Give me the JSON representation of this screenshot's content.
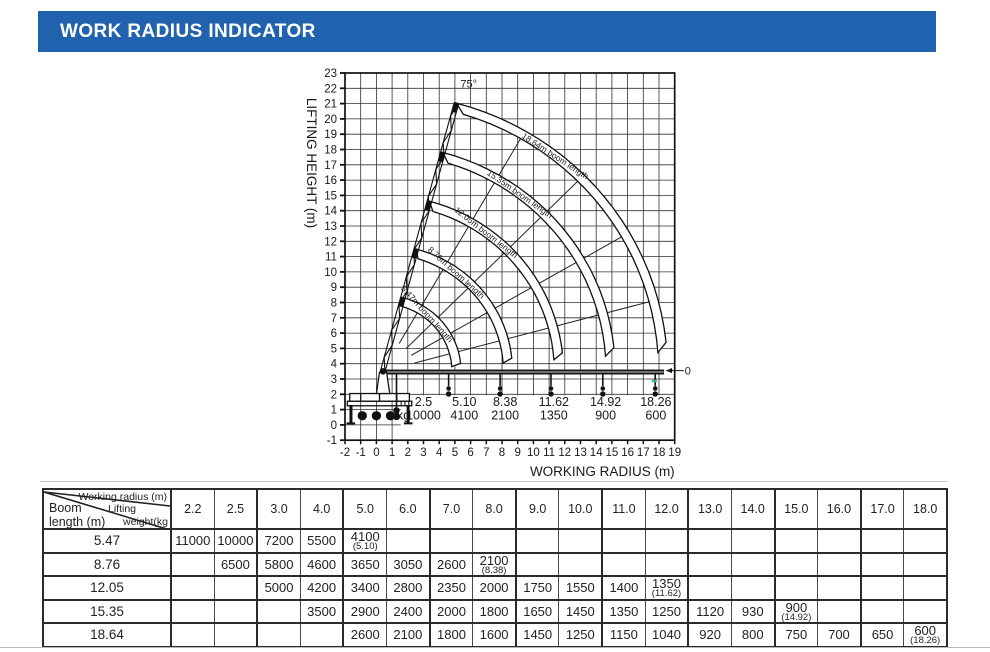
{
  "header": {
    "title": "WORK RADIUS INDICATOR",
    "bar_color": "#2062ae"
  },
  "chart_data": {
    "type": "line",
    "title": "",
    "xlabel": "WORKING RADIUS (m)",
    "ylabel": "LIFTING HEIGHT (m)",
    "xlim": [
      -2,
      19
    ],
    "ylim": [
      -1,
      23
    ],
    "x_tick_step": 1,
    "y_tick_step": 1,
    "grid": true,
    "legend_position": "none",
    "pivot": {
      "x": 0.4,
      "y": 3.5
    },
    "max_angle_label": "75°",
    "min_angle_label": "0°",
    "curves": [
      {
        "label": "5.47m boom length",
        "boom_length_m": 5.47,
        "max_radius_m": 5.1
      },
      {
        "label": "8.76m boom length",
        "boom_length_m": 8.76,
        "max_radius_m": 8.38
      },
      {
        "label": "12.05m boom length",
        "boom_length_m": 12.05,
        "max_radius_m": 11.62
      },
      {
        "label": "15.35m boom length",
        "boom_length_m": 15.35,
        "max_radius_m": 14.92
      },
      {
        "label": "18.64m boom length",
        "boom_length_m": 18.64,
        "max_radius_m": 18.26
      }
    ],
    "load_scale": {
      "m_label": "m",
      "kg_label": "kg",
      "radii_m": [
        "2.5",
        "5.10",
        "8.38",
        "11.62",
        "14.92",
        "18.26"
      ],
      "capacities_kg": [
        "10000",
        "4100",
        "2100",
        "1350",
        "900",
        "600"
      ]
    }
  },
  "table": {
    "corner": {
      "top": "Working radius (m)",
      "mid_line1": "Lifting",
      "mid_line2": "weight(kg",
      "bottom_line1": "Boom",
      "bottom_line2": "length (m)"
    },
    "columns": [
      "2.2",
      "2.5",
      "3.0",
      "4.0",
      "5.0",
      "6.0",
      "7.0",
      "8.0",
      "9.0",
      "10.0",
      "11.0",
      "12.0",
      "13.0",
      "14.0",
      "15.0",
      "16.0",
      "17.0",
      "18.0"
    ],
    "rows": [
      {
        "boom_length": "5.47",
        "values": [
          "11000",
          "10000",
          "7200",
          "5500",
          "4100\n(5.10)",
          "",
          "",
          "",
          "",
          "",
          "",
          "",
          "",
          "",
          "",
          "",
          "",
          ""
        ]
      },
      {
        "boom_length": "8.76",
        "values": [
          "",
          "6500",
          "5800",
          "4600",
          "3650",
          "3050",
          "2600",
          "2100\n(8.38)",
          "",
          "",
          "",
          "",
          "",
          "",
          "",
          "",
          "",
          ""
        ]
      },
      {
        "boom_length": "12.05",
        "values": [
          "",
          "",
          "5000",
          "4200",
          "3400",
          "2800",
          "2350",
          "2000",
          "1750",
          "1550",
          "1400",
          "1350\n(11.62)",
          "",
          "",
          "",
          "",
          "",
          ""
        ]
      },
      {
        "boom_length": "15.35",
        "values": [
          "",
          "",
          "",
          "3500",
          "2900",
          "2400",
          "2000",
          "1800",
          "1650",
          "1450",
          "1350",
          "1250",
          "1120",
          "930",
          "900\n(14.92)",
          "",
          "",
          ""
        ]
      },
      {
        "boom_length": "18.64",
        "values": [
          "",
          "",
          "",
          "",
          "2600",
          "2100",
          "1800",
          "1600",
          "1450",
          "1250",
          "1150",
          "1040",
          "920",
          "800",
          "750",
          "700",
          "650",
          "600\n(18.26)"
        ]
      }
    ]
  }
}
